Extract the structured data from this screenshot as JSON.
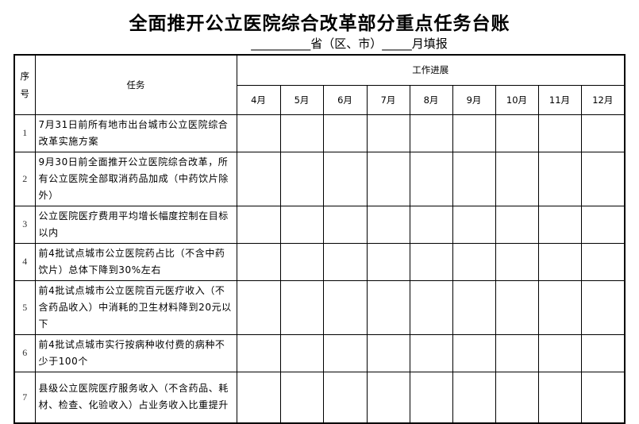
{
  "title": "全面推开公立医院综合改革部分重点任务台账",
  "subtitle": "__________省（区、市）_____月填报",
  "table": {
    "col_index": "序号",
    "col_task": "任务",
    "col_progress": "工作进展",
    "months": [
      "4月",
      "5月",
      "6月",
      "7月",
      "8月",
      "9月",
      "10月",
      "11月",
      "12月"
    ],
    "rows": [
      {
        "no": "1",
        "task": "7月31日前所有地市出台城市公立医院综合改革实施方案"
      },
      {
        "no": "2",
        "task": "9月30日前全面推开公立医院综合改革，所有公立医院全部取消药品加成（中药饮片除外）"
      },
      {
        "no": "3",
        "task": "公立医院医疗费用平均增长幅度控制在目标以内"
      },
      {
        "no": "4",
        "task": "前4批试点城市公立医院药占比（不含中药饮片）总体下降到30%左右"
      },
      {
        "no": "5",
        "task": "前4批试点城市公立医院百元医疗收入（不含药品收入）中消耗的卫生材料降到20元以下"
      },
      {
        "no": "6",
        "task": "前4批试点城市实行按病种收付费的病种不少于100个"
      },
      {
        "no": "7",
        "task": "县级公立医院医疗服务收入（不含药品、耗材、检查、化验收入）占业务收入比重提升"
      }
    ]
  }
}
